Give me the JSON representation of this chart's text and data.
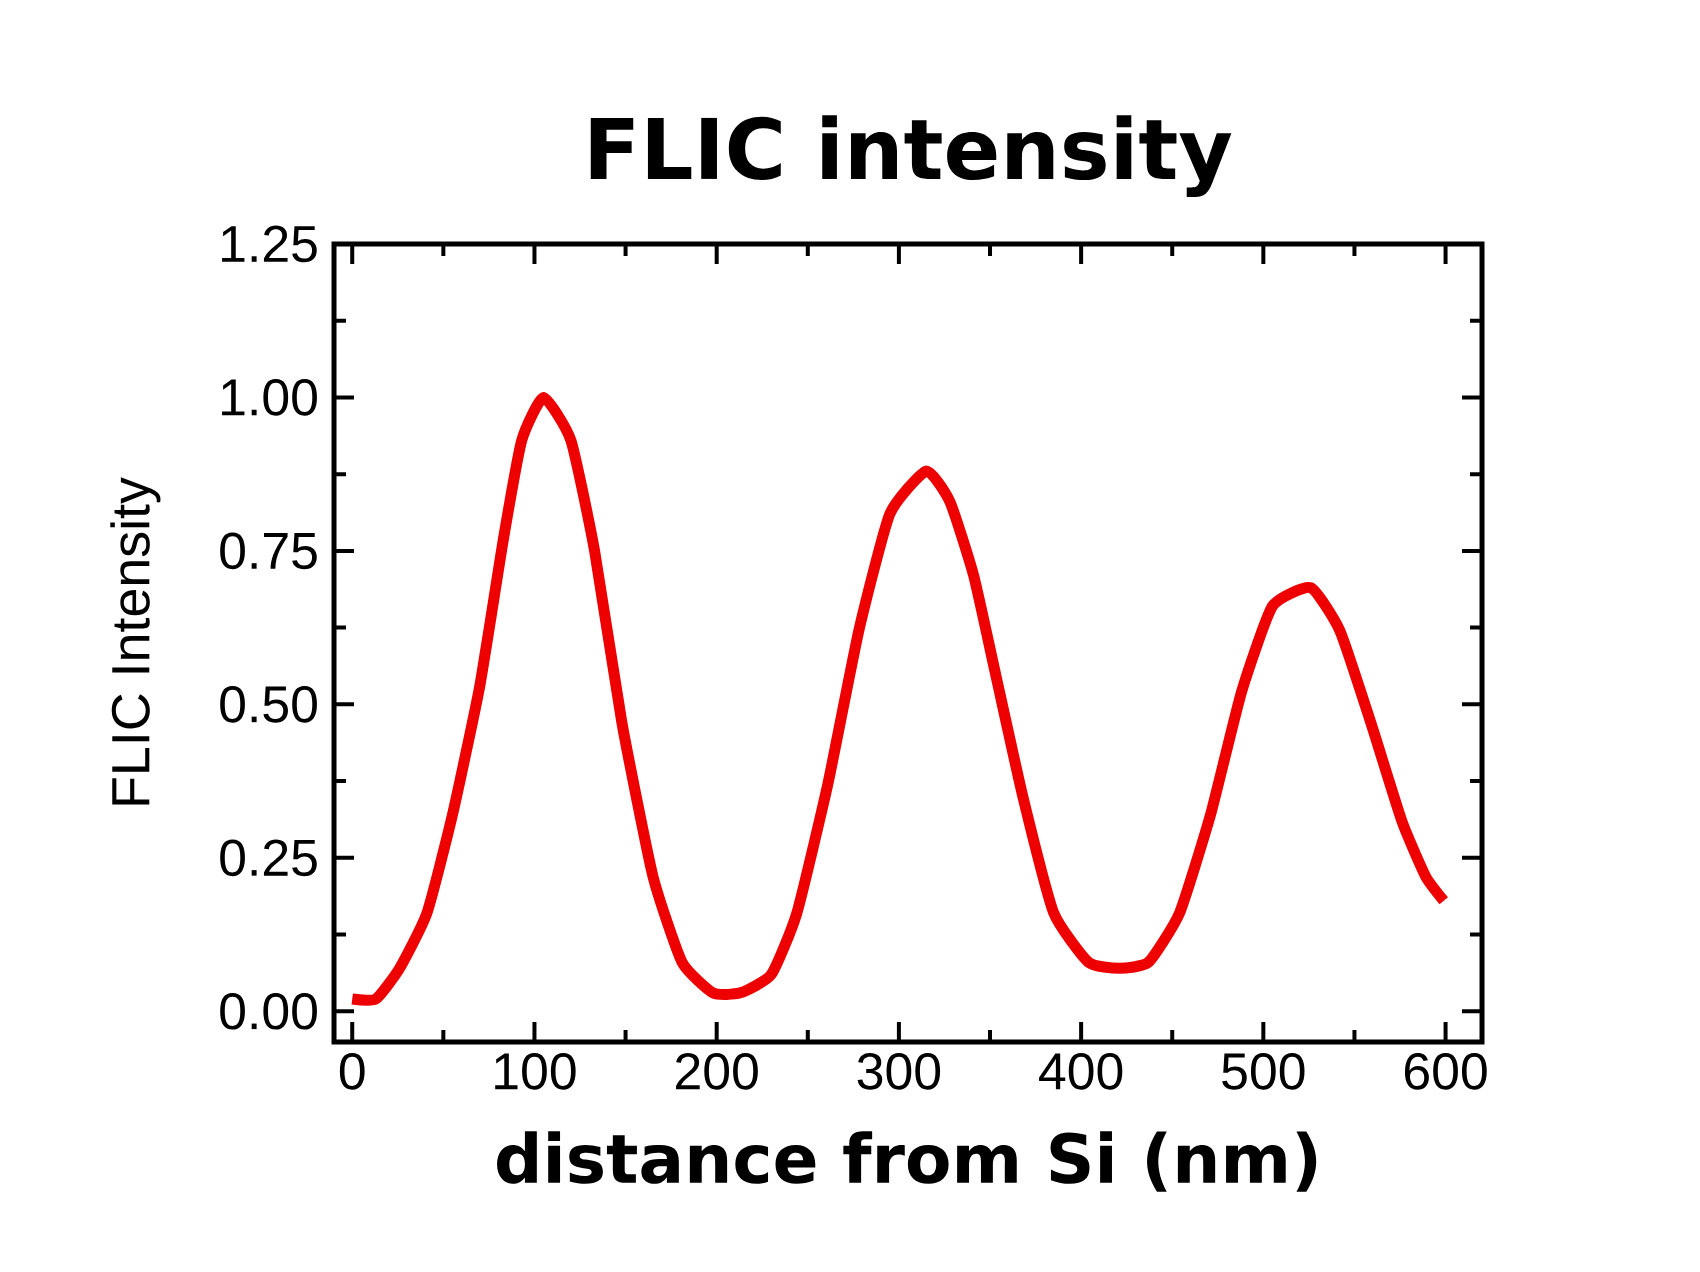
{
  "chart_data": {
    "type": "line",
    "title": "FLIC intensity",
    "xlabel": "distance from Si (nm)",
    "ylabel": "FLIC Intensity",
    "x": [
      0,
      13,
      26,
      41,
      55,
      70,
      83,
      93,
      105,
      120,
      133,
      148,
      165,
      181,
      198,
      213,
      230,
      244,
      261,
      278,
      295,
      315,
      328,
      341,
      353,
      368,
      385,
      404,
      421,
      437,
      454,
      471,
      488,
      505,
      526,
      542,
      559,
      576,
      589,
      599
    ],
    "series": [
      {
        "color": "#ee0000",
        "values": [
          0.02,
          0.02,
          0.07,
          0.16,
          0.32,
          0.53,
          0.77,
          0.93,
          1.0,
          0.93,
          0.75,
          0.47,
          0.22,
          0.08,
          0.03,
          0.03,
          0.06,
          0.16,
          0.37,
          0.62,
          0.81,
          0.88,
          0.83,
          0.71,
          0.55,
          0.35,
          0.16,
          0.08,
          0.07,
          0.08,
          0.16,
          0.32,
          0.52,
          0.66,
          0.69,
          0.62,
          0.47,
          0.31,
          0.22,
          0.18
        ]
      }
    ],
    "xlim": [
      -10,
      620
    ],
    "ylim": [
      -0.05,
      1.25
    ],
    "xticks": [
      0,
      100,
      200,
      300,
      400,
      500,
      600
    ],
    "yticks": [
      {
        "value": 0,
        "label": "0.00"
      },
      {
        "value": 0.25,
        "label": "0.25"
      },
      {
        "value": 0.5,
        "label": "0.50"
      },
      {
        "value": 0.75,
        "label": "0.75"
      },
      {
        "value": 1,
        "label": "1.00"
      },
      {
        "value": 1.25,
        "label": "1.25"
      }
    ],
    "marker": "none",
    "line_style": "solid"
  }
}
